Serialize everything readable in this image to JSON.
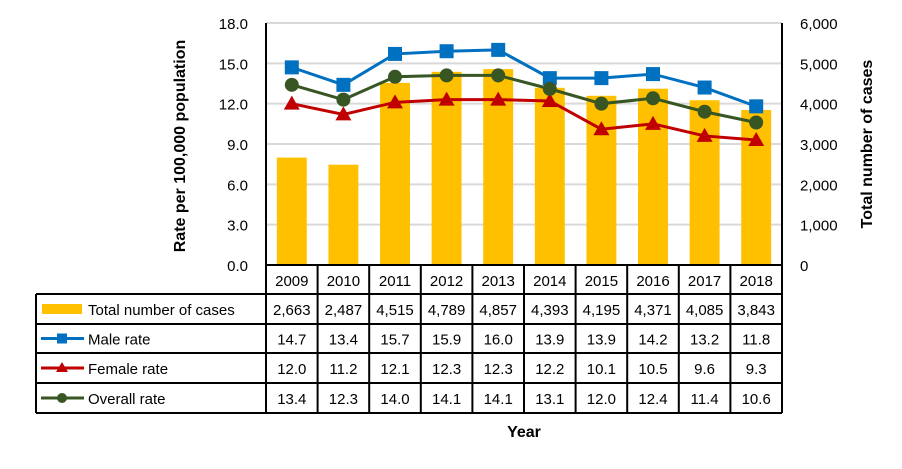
{
  "chart_data": {
    "type": "bar+line",
    "title": "",
    "xlabel": "Year",
    "ylabel_left": "Rate per 100,000 population",
    "ylabel_right": "Total number of cases",
    "categories": [
      "2009",
      "2010",
      "2011",
      "2012",
      "2013",
      "2014",
      "2015",
      "2016",
      "2017",
      "2018"
    ],
    "ylim_left": [
      0,
      18
    ],
    "yticks_left": [
      "0.0",
      "3.0",
      "6.0",
      "9.0",
      "12.0",
      "15.0",
      "18.0"
    ],
    "ylim_right": [
      0,
      6000
    ],
    "yticks_right": [
      "0",
      "1,000",
      "2,000",
      "3,000",
      "4,000",
      "5,000",
      "6,000"
    ],
    "grid": true,
    "legend": "data-table-below",
    "series": [
      {
        "name": "Total number of cases",
        "kind": "bar",
        "axis": "right",
        "color": "#FFC000",
        "values": [
          2663,
          2487,
          4515,
          4789,
          4857,
          4393,
          4195,
          4371,
          4085,
          3843
        ],
        "labels": [
          "2,663",
          "2,487",
          "4,515",
          "4,789",
          "4,857",
          "4,393",
          "4,195",
          "4,371",
          "4,085",
          "3,843"
        ]
      },
      {
        "name": "Male rate",
        "kind": "line",
        "marker": "square",
        "axis": "left",
        "color": "#0070C0",
        "values": [
          14.7,
          13.4,
          15.7,
          15.9,
          16.0,
          13.9,
          13.9,
          14.2,
          13.2,
          11.8
        ],
        "labels": [
          "14.7",
          "13.4",
          "15.7",
          "15.9",
          "16.0",
          "13.9",
          "13.9",
          "14.2",
          "13.2",
          "11.8"
        ]
      },
      {
        "name": "Female rate",
        "kind": "line",
        "marker": "triangle",
        "axis": "left",
        "color": "#C00000",
        "values": [
          12.0,
          11.2,
          12.1,
          12.3,
          12.3,
          12.2,
          10.1,
          10.5,
          9.6,
          9.3
        ],
        "labels": [
          "12.0",
          "11.2",
          "12.1",
          "12.3",
          "12.3",
          "12.2",
          "10.1",
          "10.5",
          "9.6",
          "9.3"
        ]
      },
      {
        "name": "Overall rate",
        "kind": "line",
        "marker": "circle",
        "axis": "left",
        "color": "#375623",
        "values": [
          13.4,
          12.3,
          14.0,
          14.1,
          14.1,
          13.1,
          12.0,
          12.4,
          11.4,
          10.6
        ],
        "labels": [
          "13.4",
          "12.3",
          "14.0",
          "14.1",
          "14.1",
          "13.1",
          "12.0",
          "12.4",
          "11.4",
          "10.6"
        ]
      }
    ]
  }
}
